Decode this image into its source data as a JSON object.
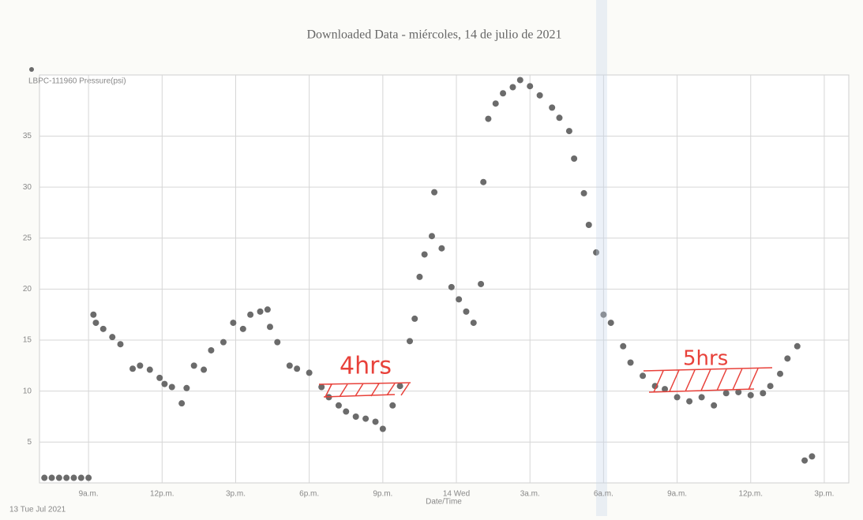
{
  "chart_data": {
    "type": "scatter",
    "title": "Downloaded Data - miércoles, 14 de julio de 2021",
    "xlabel": "Date/Time",
    "date_label": "13 Tue Jul 2021",
    "annotations": [
      "4hrs",
      "5hrs"
    ],
    "x": [
      7.2,
      7.5,
      7.8,
      8.1,
      8.4,
      8.7,
      9.0,
      9.2,
      9.3,
      9.6,
      9.97,
      10.3,
      10.8,
      11.1,
      11.5,
      11.9,
      12.1,
      12.4,
      12.8,
      13.0,
      13.3,
      13.7,
      14.0,
      14.5,
      14.9,
      15.3,
      15.6,
      16.0,
      16.3,
      16.4,
      16.7,
      17.2,
      17.5,
      18.0,
      18.5,
      18.8,
      19.2,
      19.5,
      19.9,
      20.3,
      20.7,
      21.0,
      21.4,
      21.7,
      22.1,
      22.3,
      22.5,
      22.7,
      23.0,
      23.1,
      23.4,
      23.8,
      24.1,
      24.4,
      24.7,
      25.0,
      25.1,
      25.3,
      25.6,
      25.9,
      26.3,
      26.6,
      27.0,
      27.4,
      27.9,
      28.2,
      28.6,
      28.8,
      29.2,
      29.4,
      29.7,
      30.0,
      30.3,
      30.8,
      31.1,
      31.6,
      32.1,
      32.5,
      33.0,
      33.5,
      34.0,
      34.5,
      35.0,
      35.5,
      36.0,
      36.5,
      36.8,
      37.2,
      37.5,
      37.9,
      38.2,
      38.5
    ],
    "series": [
      {
        "name": "LBPC-111960 Pressure(psi)",
        "color": "#6b6b6b",
        "values": [
          1.5,
          1.5,
          1.5,
          1.5,
          1.5,
          1.5,
          1.5,
          17.5,
          16.7,
          16.1,
          15.3,
          14.6,
          12.2,
          12.5,
          12.1,
          11.3,
          10.7,
          10.4,
          8.8,
          10.3,
          12.5,
          12.1,
          14.0,
          14.8,
          16.7,
          16.1,
          17.5,
          17.8,
          18.0,
          16.3,
          14.8,
          12.5,
          12.2,
          11.8,
          10.4,
          9.4,
          8.6,
          8.0,
          7.5,
          7.3,
          7.0,
          6.3,
          8.6,
          10.5,
          14.9,
          17.1,
          21.2,
          23.4,
          25.2,
          29.5,
          24.0,
          20.2,
          19.0,
          17.8,
          16.7,
          20.5,
          30.5,
          36.7,
          38.2,
          39.2,
          39.8,
          40.5,
          39.9,
          39.0,
          37.8,
          36.8,
          35.5,
          32.8,
          29.4,
          26.3,
          23.6,
          17.5,
          16.7,
          14.4,
          12.8,
          11.5,
          10.5,
          10.2,
          9.4,
          9.0,
          9.4,
          8.6,
          9.8,
          9.9,
          9.6,
          9.8,
          10.5,
          11.7,
          13.2,
          14.4,
          3.2,
          3.6
        ]
      }
    ],
    "xlim": [
      7,
      40
    ],
    "xticks": [
      {
        "value": 9,
        "label": "9a.m."
      },
      {
        "value": 12,
        "label": "12p.m."
      },
      {
        "value": 15,
        "label": "3p.m."
      },
      {
        "value": 18,
        "label": "6p.m."
      },
      {
        "value": 21,
        "label": "9p.m."
      },
      {
        "value": 24,
        "label": "14 Wed"
      },
      {
        "value": 27,
        "label": "3a.m."
      },
      {
        "value": 30,
        "label": "6a.m."
      },
      {
        "value": 33,
        "label": "9a.m."
      },
      {
        "value": 36,
        "label": "12p.m."
      },
      {
        "value": 39,
        "label": "3p.m."
      }
    ],
    "ylim": [
      1,
      41
    ],
    "yticks": [
      5,
      10,
      15,
      20,
      25,
      30,
      35
    ],
    "grid": true
  }
}
